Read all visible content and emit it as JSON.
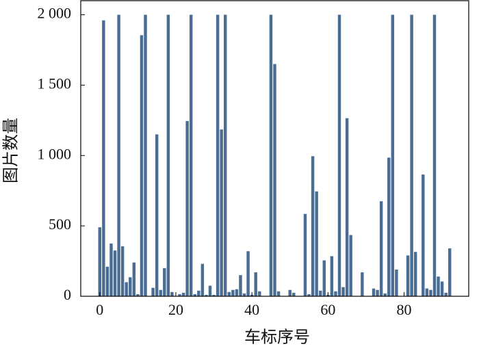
{
  "chart_data": {
    "type": "bar",
    "x_label": "车标序号",
    "y_label": "图片数量",
    "x": [
      0,
      1,
      2,
      3,
      4,
      5,
      6,
      7,
      8,
      9,
      10,
      11,
      12,
      13,
      14,
      15,
      16,
      17,
      18,
      19,
      20,
      21,
      22,
      23,
      24,
      25,
      26,
      27,
      28,
      29,
      30,
      31,
      32,
      33,
      34,
      35,
      36,
      37,
      38,
      39,
      40,
      41,
      42,
      43,
      44,
      45,
      46,
      47,
      48,
      49,
      50,
      51,
      52,
      53,
      54,
      55,
      56,
      57,
      58,
      59,
      60,
      61,
      62,
      63,
      64,
      65,
      66,
      67,
      68,
      69,
      70,
      71,
      72,
      73,
      74,
      75,
      76,
      77,
      78,
      79,
      80,
      81,
      82,
      83,
      84,
      85,
      86,
      87,
      88,
      89,
      90,
      91,
      92
    ],
    "values": [
      490,
      1960,
      210,
      375,
      325,
      2000,
      355,
      100,
      135,
      240,
      15,
      1855,
      2000,
      0,
      60,
      1150,
      45,
      200,
      2000,
      30,
      0,
      15,
      25,
      1245,
      2000,
      15,
      40,
      230,
      10,
      75,
      10,
      2000,
      1185,
      2000,
      30,
      45,
      50,
      150,
      20,
      320,
      10,
      170,
      35,
      0,
      0,
      2000,
      1650,
      35,
      0,
      0,
      45,
      25,
      0,
      0,
      585,
      15,
      995,
      745,
      40,
      255,
      10,
      285,
      35,
      2000,
      65,
      1265,
      435,
      0,
      0,
      170,
      0,
      0,
      55,
      45,
      675,
      20,
      985,
      2000,
      190,
      0,
      0,
      290,
      2000,
      315,
      0,
      865,
      55,
      45,
      2000,
      140,
      105,
      25,
      340
    ],
    "color": "#4a6d94",
    "xlim": [
      -5,
      97
    ],
    "xticks": [
      0,
      20,
      40,
      60,
      80
    ],
    "ylim": [
      0,
      2100
    ],
    "yticks": [
      0,
      500,
      {
        "value": 1000,
        "label": "1 000"
      },
      {
        "value": 1500,
        "label": "1 500"
      },
      {
        "value": 2000,
        "label": "2 000"
      }
    ]
  }
}
